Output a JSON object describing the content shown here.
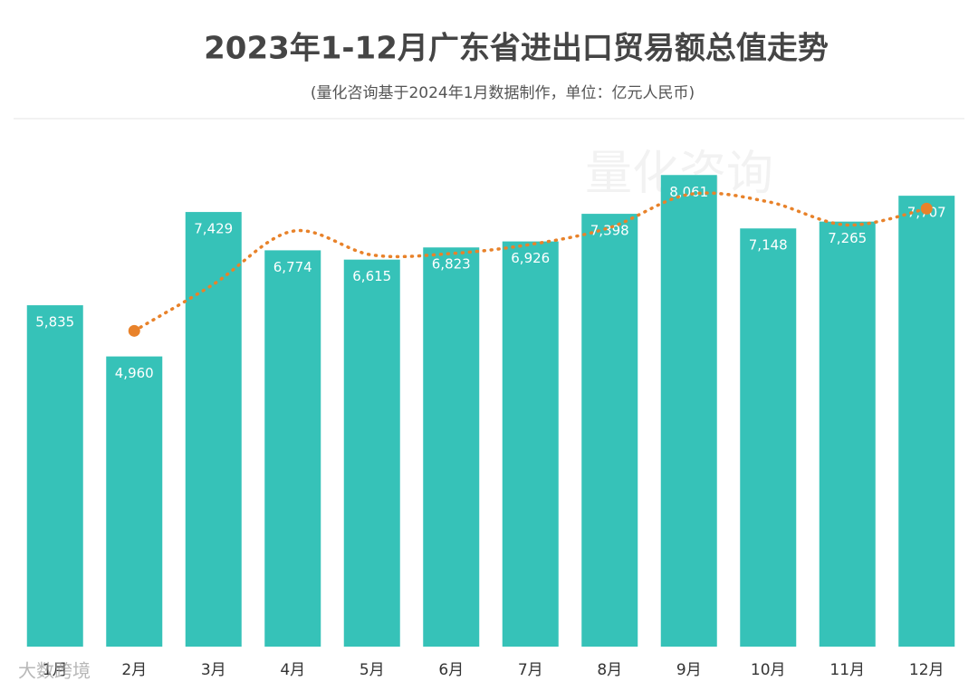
{
  "chart_data": {
    "type": "bar",
    "title": "2023年1-12月广东省进出口贸易额总值走势",
    "subtitle": "(量化咨询基于2024年1月数据制作，单位：亿元人民币)",
    "watermark": "量化咨询",
    "source_logo": "大数跨境",
    "categories": [
      "1月",
      "2月",
      "3月",
      "4月",
      "5月",
      "6月",
      "7月",
      "8月",
      "9月",
      "10月",
      "11月",
      "12月"
    ],
    "series": [
      {
        "type": "bar",
        "color": "#36c2b8",
        "values": [
          5835,
          4960,
          7429,
          6774,
          6615,
          6823,
          6926,
          7398,
          8061,
          7148,
          7265,
          7707
        ],
        "value_labels": [
          "5,835",
          "4,960",
          "7,429",
          "6,774",
          "6,615",
          "6,823",
          "6,926",
          "7,398",
          "8,061",
          "7,148",
          "7,265",
          "7,707"
        ]
      },
      {
        "type": "line",
        "color": "#e8822a",
        "dotted": true,
        "values": [
          null,
          5397.5,
          6194.5,
          7101.5,
          6694.5,
          6719,
          6874.5,
          7162,
          7729.5,
          7604.5,
          7206.5,
          7486
        ]
      }
    ],
    "ylim": [
      0,
      10000
    ],
    "grid": false
  }
}
